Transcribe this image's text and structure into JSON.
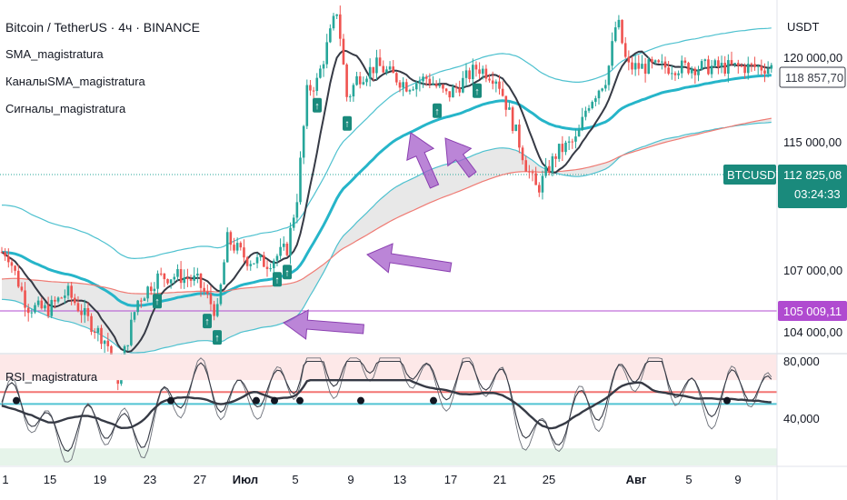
{
  "legend": {
    "symbol": "Bitcoin / TetherUS · 4ч · BINANCE",
    "ind1": "SMA_magistratura",
    "ind2": "КаналыSMA_magistratura",
    "ind3": "Сигналы_magistratura",
    "ind4": "RSI_magistratura"
  },
  "price_axis": {
    "currency": "USDT",
    "ticks": [
      "120 000,00",
      "115 000,00",
      "107 000,00",
      "104 000,00"
    ],
    "tag_sma": "118 857,70",
    "tag_symbol": "BTCUSDT",
    "tag_last": "112 825,08",
    "tag_timer": "03:24:33",
    "tag_level": "105 009,11"
  },
  "rsi_axis": {
    "ticks": [
      "80,000",
      "40,000"
    ]
  },
  "time_axis": {
    "ticks": [
      "1",
      "15",
      "19",
      "23",
      "27",
      "Июл",
      "5",
      "9",
      "13",
      "17",
      "21",
      "25",
      "Авг",
      "5",
      "9"
    ]
  },
  "colors": {
    "up": "#26a69a",
    "down": "#ef5350",
    "sma": "#363a45",
    "channel_mid": "#26b5c9",
    "channel": "#4ec1cf",
    "slow": "#ef7b74",
    "level": "#b04bd0",
    "arrow": "#a45cc9",
    "signal": "#1a8a7c"
  },
  "chart_data": [
    {
      "type": "candlestick",
      "title": "Bitcoin / TetherUS · 4ч · BINANCE",
      "y_unit": "USDT",
      "ylim": [
        103000,
        122500
      ],
      "x_ticks": [
        "1",
        "15",
        "19",
        "23",
        "27",
        "Июл",
        "5",
        "9",
        "13",
        "17",
        "21",
        "25",
        "Авг",
        "5",
        "9"
      ],
      "last_price": 112825.08,
      "sma_last": 118857.7,
      "horizontal_level": 105009.11,
      "approx_close_path": [
        {
          "date": "Jun 11",
          "close": 108600
        },
        {
          "date": "Jun 13",
          "close": 105600
        },
        {
          "date": "Jun 15",
          "close": 105400
        },
        {
          "date": "Jun 17",
          "close": 106400
        },
        {
          "date": "Jun 19",
          "close": 104900
        },
        {
          "date": "Jun 21",
          "close": 103600
        },
        {
          "date": "Jun 22",
          "close": 101500
        },
        {
          "date": "Jun 24",
          "close": 105900
        },
        {
          "date": "Jun 26",
          "close": 107200
        },
        {
          "date": "Jun 28",
          "close": 107300
        },
        {
          "date": "Jun 30",
          "close": 107000
        },
        {
          "date": "Jul 2",
          "close": 105200
        },
        {
          "date": "Jul 3",
          "close": 109300
        },
        {
          "date": "Jul 5",
          "close": 108200
        },
        {
          "date": "Jul 7",
          "close": 108000
        },
        {
          "date": "Jul 9",
          "close": 108800
        },
        {
          "date": "Jul 10",
          "close": 111700
        },
        {
          "date": "Jul 11",
          "close": 117500
        },
        {
          "date": "Jul 12",
          "close": 118000
        },
        {
          "date": "Jul 14",
          "close": 122000
        },
        {
          "date": "Jul 15",
          "close": 117000
        },
        {
          "date": "Jul 16",
          "close": 118200
        },
        {
          "date": "Jul 18",
          "close": 118900
        },
        {
          "date": "Jul 21",
          "close": 117800
        },
        {
          "date": "Jul 23",
          "close": 118200
        },
        {
          "date": "Jul 25",
          "close": 117200
        },
        {
          "date": "Jul 26",
          "close": 117700
        },
        {
          "date": "Jul 28",
          "close": 118800
        },
        {
          "date": "Jul 30",
          "close": 118200
        },
        {
          "date": "Aug 1",
          "close": 115000
        },
        {
          "date": "Aug 2",
          "close": 113200
        },
        {
          "date": "Aug 3",
          "close": 112000
        },
        {
          "date": "Aug 5",
          "close": 114100
        },
        {
          "date": "Aug 7",
          "close": 114800
        },
        {
          "date": "Aug 8",
          "close": 116700
        },
        {
          "date": "Aug 10",
          "close": 118300
        },
        {
          "date": "Aug 11",
          "close": 121500
        },
        {
          "date": "Aug 12",
          "close": 118800
        }
      ],
      "signals": [
        {
          "date": "Jun 26",
          "label": "↑"
        },
        {
          "date": "Jul 1",
          "label": "↑"
        },
        {
          "date": "Jul 2",
          "label": "↑"
        },
        {
          "date": "Jul 8",
          "label": "↑"
        },
        {
          "date": "Jul 9",
          "label": "↑"
        },
        {
          "date": "Jul 12",
          "label": "↑"
        },
        {
          "date": "Jul 15",
          "label": "↑"
        },
        {
          "date": "Jul 24",
          "label": "↑"
        },
        {
          "date": "Jul 28",
          "label": "↑"
        }
      ]
    },
    {
      "type": "line",
      "title": "RSI_magistratura",
      "ylim": [
        20,
        85
      ],
      "y_ticks": [
        "80,000",
        "40,000"
      ],
      "bands": [
        {
          "from": 70,
          "to": 85,
          "color": "#fde8e8"
        },
        {
          "from": 20,
          "to": 30,
          "color": "#e6f4ea"
        }
      ],
      "levels": [
        {
          "value": 63,
          "color": "#ef5350"
        },
        {
          "value": 56,
          "color": "#26b5c9"
        }
      ]
    }
  ]
}
